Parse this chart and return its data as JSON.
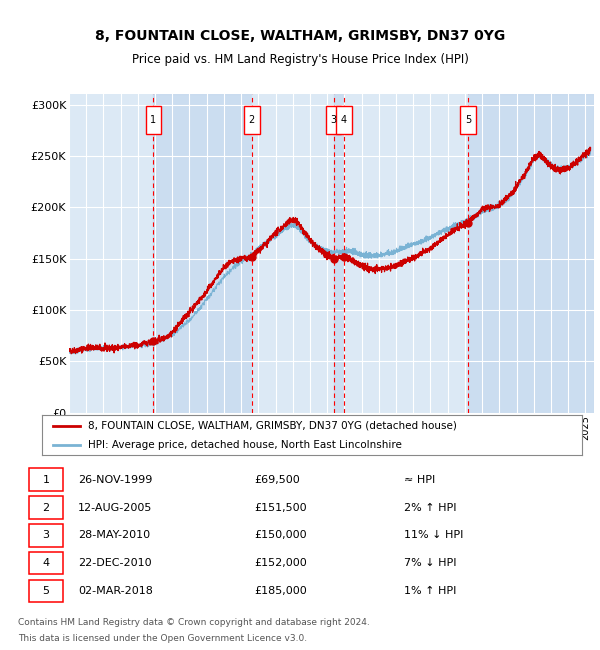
{
  "title1": "8, FOUNTAIN CLOSE, WALTHAM, GRIMSBY, DN37 0YG",
  "title2": "Price paid vs. HM Land Registry's House Price Index (HPI)",
  "ylabel_ticks": [
    "£0",
    "£50K",
    "£100K",
    "£150K",
    "£200K",
    "£250K",
    "£300K"
  ],
  "ytick_vals": [
    0,
    50000,
    100000,
    150000,
    200000,
    250000,
    300000
  ],
  "ylim": [
    0,
    310000
  ],
  "xlim_start": 1995.0,
  "xlim_end": 2025.5,
  "bg_color": "#dce9f5",
  "grid_color": "#ffffff",
  "sale_color": "#cc0000",
  "hpi_color": "#7ab3d4",
  "shade_color": "#c5d9ee",
  "transactions": [
    {
      "num": 1,
      "date_str": "26-NOV-1999",
      "date_x": 1999.9,
      "price": 69500,
      "hpi_str": "≈ HPI"
    },
    {
      "num": 2,
      "date_str": "12-AUG-2005",
      "date_x": 2005.62,
      "price": 151500,
      "hpi_str": "2% ↑ HPI"
    },
    {
      "num": 3,
      "date_str": "28-MAY-2010",
      "date_x": 2010.38,
      "price": 150000,
      "hpi_str": "11% ↓ HPI"
    },
    {
      "num": 4,
      "date_str": "22-DEC-2010",
      "date_x": 2010.97,
      "price": 152000,
      "hpi_str": "7% ↓ HPI"
    },
    {
      "num": 5,
      "date_str": "02-MAR-2018",
      "date_x": 2018.17,
      "price": 185000,
      "hpi_str": "1% ↑ HPI"
    }
  ],
  "legend_line1": "8, FOUNTAIN CLOSE, WALTHAM, GRIMSBY, DN37 0YG (detached house)",
  "legend_line2": "HPI: Average price, detached house, North East Lincolnshire",
  "footnote1": "Contains HM Land Registry data © Crown copyright and database right 2024.",
  "footnote2": "This data is licensed under the Open Government Licence v3.0."
}
